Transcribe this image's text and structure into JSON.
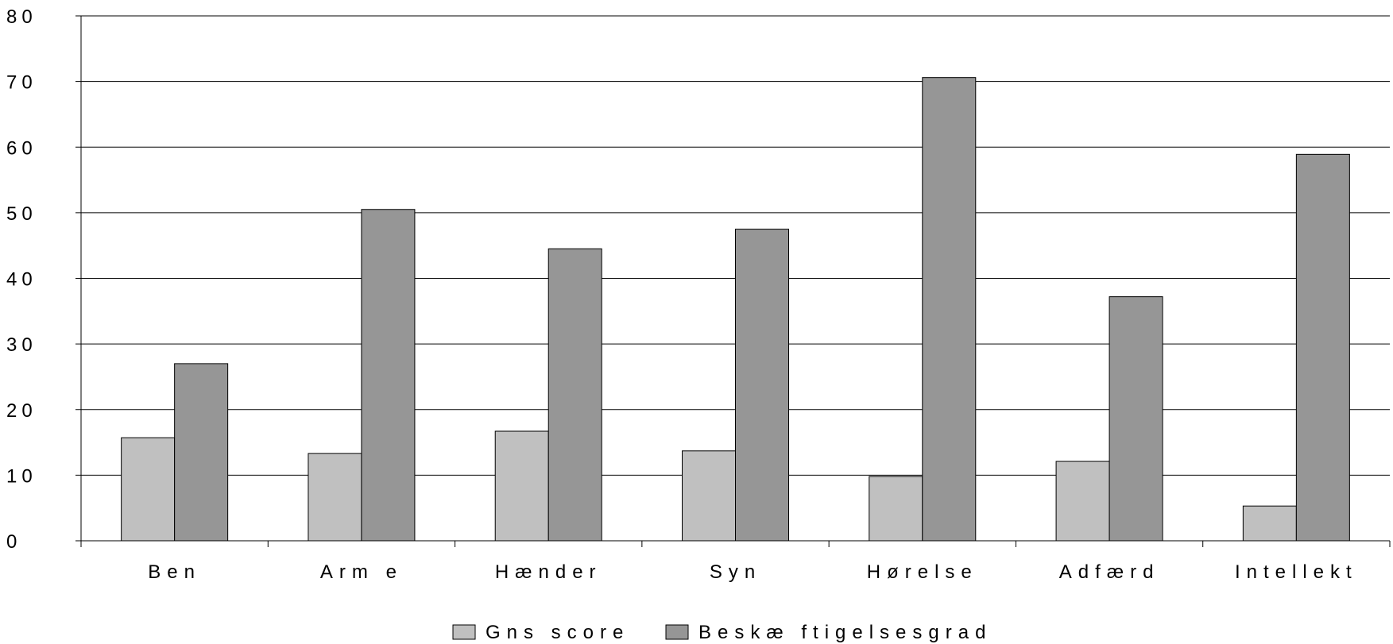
{
  "chart_data": {
    "type": "bar",
    "categories": [
      "Ben",
      "Arm e",
      "Hænder",
      "Syn",
      "Hørelse",
      "Adfærd",
      "Intellekt"
    ],
    "series": [
      {
        "name": "Gns score",
        "values": [
          15.7,
          13.3,
          16.7,
          13.7,
          9.8,
          12.1,
          5.3
        ],
        "color": "#c0c0c0"
      },
      {
        "name": "Beskæ ftigelsesgrad",
        "values": [
          27.0,
          50.5,
          44.5,
          47.5,
          70.6,
          37.2,
          58.9
        ],
        "color": "#969696"
      }
    ],
    "yticks": [
      "0",
      "10",
      "20",
      "30",
      "40",
      "50",
      "60",
      "70",
      "80"
    ],
    "ylim": [
      0,
      80
    ],
    "grid": true,
    "legend_position": "bottom-center"
  }
}
